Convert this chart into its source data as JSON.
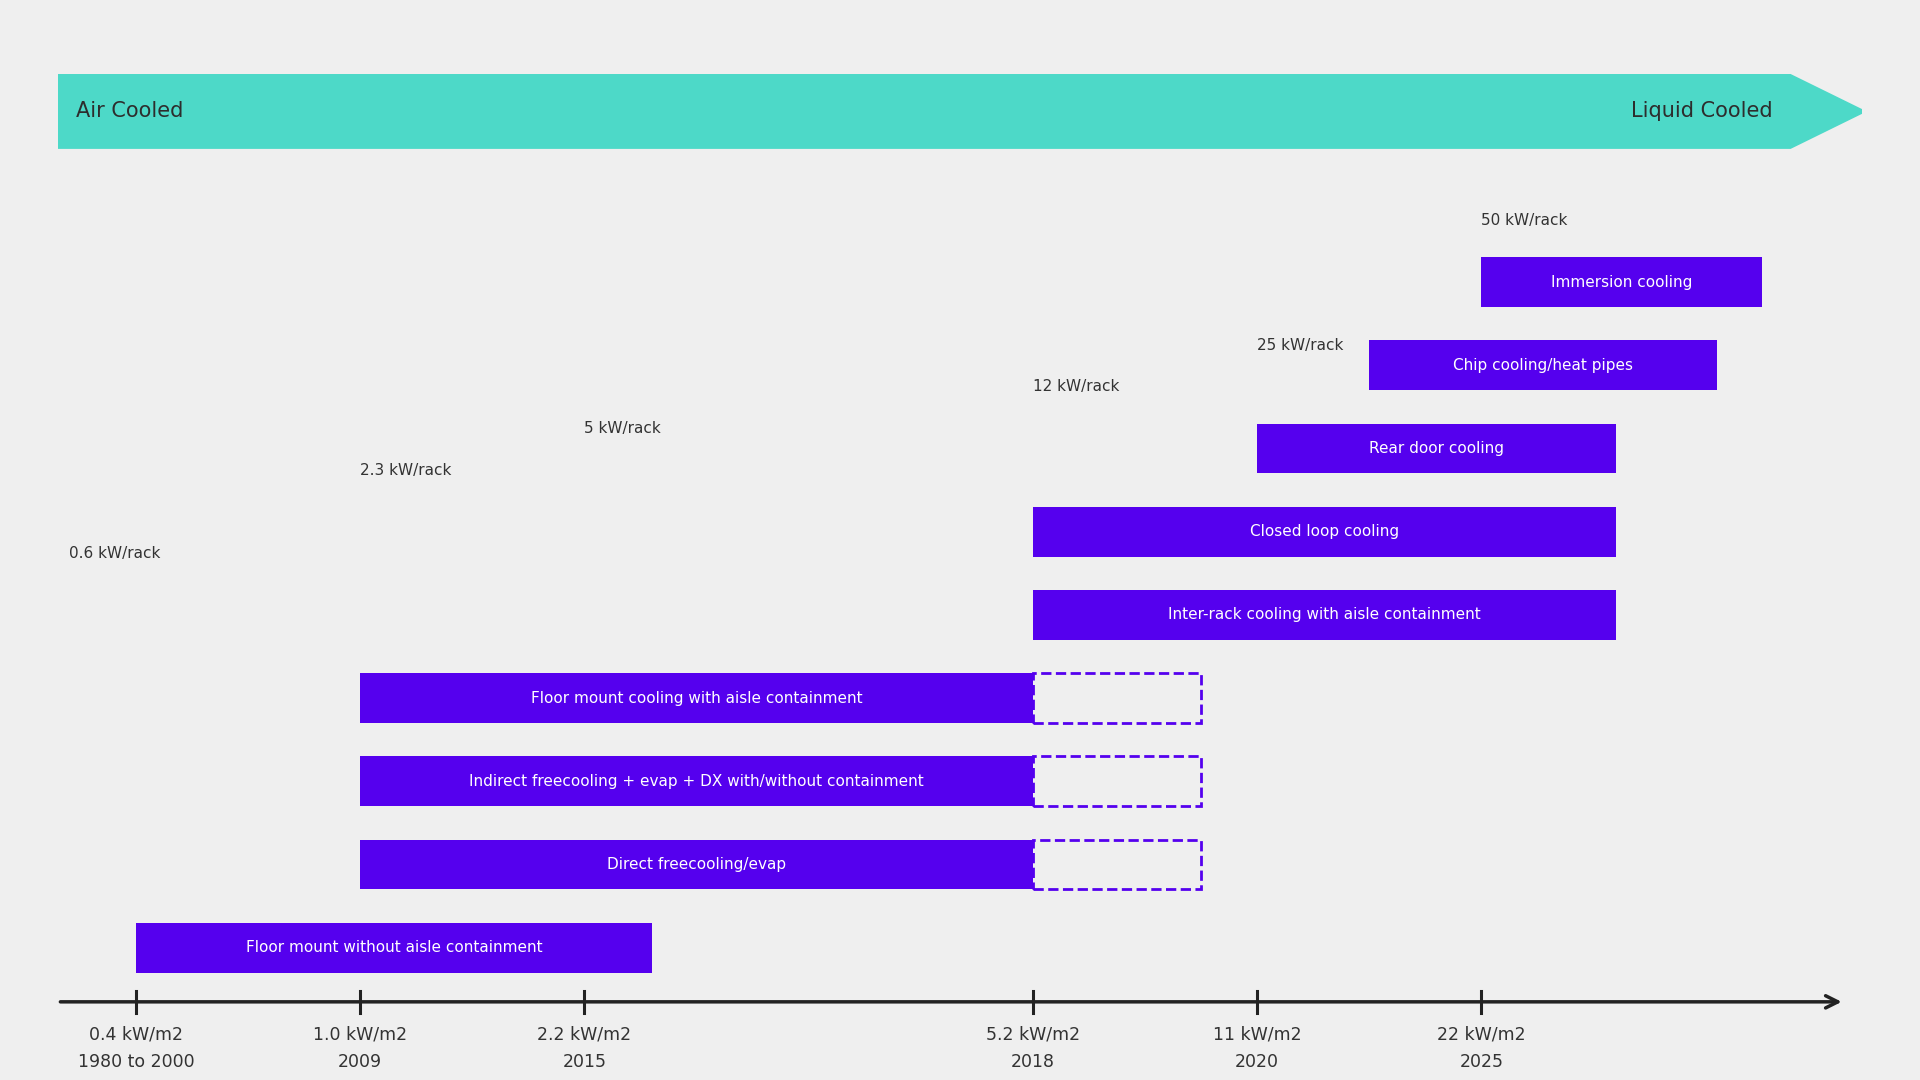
{
  "background_color": "#efefef",
  "arrow_color": "#4dd9c8",
  "arrow_text_color": "#2d2d2d",
  "bar_color": "#5500ee",
  "bar_text_color": "#ffffff",
  "kw_label_color": "#333333",
  "axis_color": "#222222",
  "x_ticks_pos": [
    0,
    1,
    2,
    4,
    5,
    6
  ],
  "x_tick_labels_line1": [
    "0.4 kW/m2",
    "1.0 kW/m2",
    "2.2 kW/m2",
    "5.2 kW/m2",
    "11 kW/m2",
    "22 kW/m2"
  ],
  "x_tick_labels_line2": [
    "1980 to 2000",
    "2009",
    "2015",
    "2018",
    "2020",
    "2025"
  ],
  "kw_rack_labels": [
    {
      "text": "0.6 kW/rack",
      "x": 0,
      "bar_y": 1
    },
    {
      "text": "2.3 kW/rack",
      "x": 1,
      "bar_y": 2
    },
    {
      "text": "5 kW/rack",
      "x": 2,
      "bar_y": 3
    },
    {
      "text": "12 kW/rack",
      "x": 4,
      "bar_y": 5
    },
    {
      "text": "25 kW/rack",
      "x": 5,
      "bar_y": 6
    },
    {
      "text": "50 kW/rack",
      "x": 6,
      "bar_y": 7
    }
  ],
  "bars": [
    {
      "label": "Immersion cooling",
      "x_start": 6.0,
      "x_end": 7.25,
      "y": 7,
      "dashed_x_start": null,
      "dashed_x_end": null
    },
    {
      "label": "Chip cooling/heat pipes",
      "x_start": 5.5,
      "x_end": 7.05,
      "y": 6,
      "dashed_x_start": null,
      "dashed_x_end": null
    },
    {
      "label": "Rear door cooling",
      "x_start": 5.0,
      "x_end": 6.6,
      "y": 5,
      "dashed_x_start": null,
      "dashed_x_end": null
    },
    {
      "label": "Closed loop cooling",
      "x_start": 4.0,
      "x_end": 6.6,
      "y": 4,
      "dashed_x_start": null,
      "dashed_x_end": null
    },
    {
      "label": "Inter-rack cooling with aisle containment",
      "x_start": 4.0,
      "x_end": 6.6,
      "y": 3,
      "dashed_x_start": null,
      "dashed_x_end": null
    },
    {
      "label": "Floor mount cooling with aisle containment",
      "x_start": 1.0,
      "x_end": 4.0,
      "y": 2,
      "dashed_x_start": 4.0,
      "dashed_x_end": 4.75
    },
    {
      "label": "Indirect freecooling + evap + DX with/without containment",
      "x_start": 1.0,
      "x_end": 4.0,
      "y": 1,
      "dashed_x_start": 4.0,
      "dashed_x_end": 4.75
    },
    {
      "label": "Direct freecooling/evap",
      "x_start": 1.0,
      "x_end": 4.0,
      "y": 0,
      "dashed_x_start": 4.0,
      "dashed_x_end": 4.75
    },
    {
      "label": "Floor mount without aisle containment",
      "x_start": 0.0,
      "x_end": 2.3,
      "y": -1,
      "dashed_x_start": null,
      "dashed_x_end": null
    }
  ],
  "bar_height": 0.6,
  "xlim": [
    -0.35,
    7.7
  ],
  "ylim": [
    -2.2,
    10.0
  ]
}
